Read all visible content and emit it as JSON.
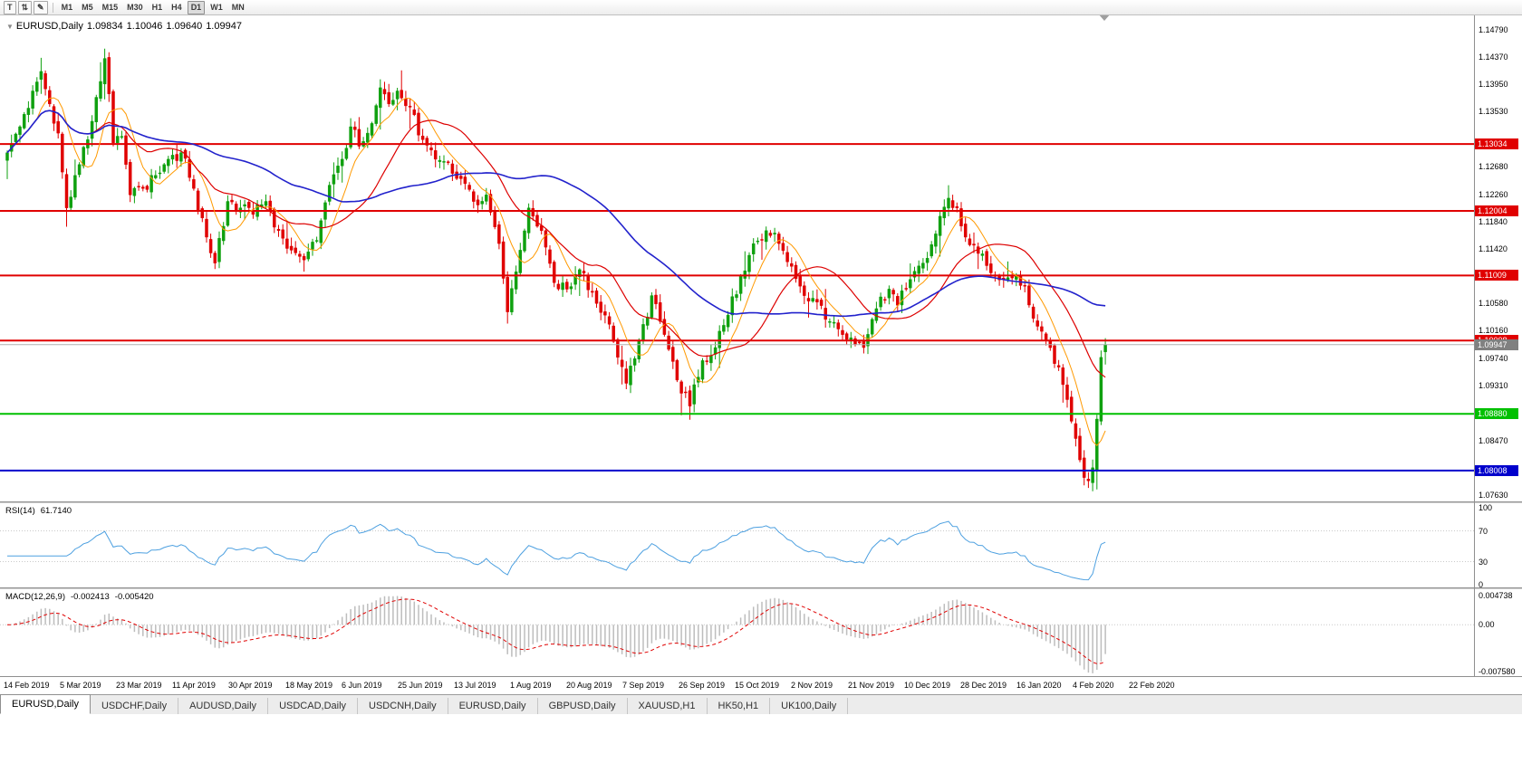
{
  "toolbar": {
    "tools": [
      {
        "name": "templates-tool",
        "glyph": "T"
      },
      {
        "name": "cursor-mode-tool",
        "glyph": "⇅"
      },
      {
        "name": "draw-objects-tool",
        "glyph": "✎"
      }
    ],
    "timeframes": [
      "M1",
      "M5",
      "M15",
      "M30",
      "H1",
      "H4",
      "D1",
      "W1",
      "MN"
    ],
    "selected_timeframe": "D1"
  },
  "header": {
    "one_click_glyph": "▼",
    "symbol": "EURUSD,Daily",
    "open": "1.09834",
    "high": "1.10046",
    "low": "1.09640",
    "close": "1.09947"
  },
  "price_axis": {
    "ticks": [
      "1.14790",
      "1.14370",
      "1.13950",
      "1.13530",
      "1.12680",
      "1.12260",
      "1.11840",
      "1.11420",
      "1.10580",
      "1.10160",
      "1.09740",
      "1.09310",
      "1.08470",
      "1.07630"
    ]
  },
  "rsi_pane": {
    "label": "RSI(14)",
    "value": "61.7140",
    "period": 14,
    "axis": [
      {
        "v": 100,
        "t": "100"
      },
      {
        "v": 70,
        "t": "70"
      },
      {
        "v": 30,
        "t": "30"
      },
      {
        "v": 0,
        "t": "0"
      }
    ],
    "dashed_levels": [
      70,
      30
    ],
    "line_color": "#4da0e0"
  },
  "macd_pane": {
    "label": "MACD(12,26,9)",
    "main_value": "-0.002413",
    "signal_value": "-0.005420",
    "axis": [
      {
        "v": 0.004738,
        "t": "0.004738"
      },
      {
        "v": 0,
        "t": "0.00"
      },
      {
        "v": -0.00758,
        "t": "-0.007580"
      }
    ],
    "range": {
      "max": 0.004738,
      "min": -0.00758
    },
    "hist_color": "#bdbdbd",
    "signal_color": "#e00000"
  },
  "tabs": {
    "active_index": 0,
    "items": [
      "EURUSD,Daily",
      "USDCHF,Daily",
      "AUDUSD,Daily",
      "USDCAD,Daily",
      "USDCNH,Daily",
      "EURUSD,Daily",
      "GBPUSD,Daily",
      "XAUUSD,H1",
      "HK50,H1",
      "UK100,Daily"
    ]
  },
  "chart_data": {
    "type": "candlestick",
    "symbol": "EURUSD",
    "timeframe": "Daily",
    "ohlc_current": {
      "open": 1.09834,
      "high": 1.10046,
      "low": 1.0964,
      "close": 1.09947
    },
    "y_range": [
      1.0763,
      1.1479
    ],
    "bars": 260,
    "seed": 11,
    "noise_amp": 0.0011,
    "gap_amp": 0.0004,
    "wick_amp": 0.0016,
    "date_labels": [
      "14 Feb 2019",
      "5 Mar 2019",
      "23 Mar 2019",
      "11 Apr 2019",
      "30 Apr 2019",
      "18 May 2019",
      "6 Jun 2019",
      "25 Jun 2019",
      "13 Jul 2019",
      "1 Aug 2019",
      "20 Aug 2019",
      "7 Sep 2019",
      "26 Sep 2019",
      "15 Oct 2019",
      "2 Nov 2019",
      "21 Nov 2019",
      "10 Dec 2019",
      "28 Dec 2019",
      "16 Jan 2020",
      "4 Feb 2020",
      "22 Feb 2020"
    ],
    "close_anchors": [
      [
        0,
        1.129
      ],
      [
        3,
        1.133
      ],
      [
        6,
        1.1385
      ],
      [
        8,
        1.1415
      ],
      [
        10,
        1.1365
      ],
      [
        12,
        1.132
      ],
      [
        14,
        1.1205
      ],
      [
        16,
        1.1255
      ],
      [
        19,
        1.131
      ],
      [
        23,
        1.1435
      ],
      [
        25,
        1.1305
      ],
      [
        27,
        1.1315
      ],
      [
        29,
        1.1225
      ],
      [
        32,
        1.1235
      ],
      [
        35,
        1.1255
      ],
      [
        38,
        1.128
      ],
      [
        41,
        1.129
      ],
      [
        44,
        1.1235
      ],
      [
        47,
        1.116
      ],
      [
        49,
        1.112
      ],
      [
        52,
        1.1215
      ],
      [
        55,
        1.1205
      ],
      [
        58,
        1.1195
      ],
      [
        61,
        1.1215
      ],
      [
        64,
        1.117
      ],
      [
        67,
        1.114
      ],
      [
        70,
        1.1125
      ],
      [
        73,
        1.1155
      ],
      [
        76,
        1.124
      ],
      [
        79,
        1.128
      ],
      [
        81,
        1.133
      ],
      [
        83,
        1.13
      ],
      [
        85,
        1.132
      ],
      [
        88,
        1.139
      ],
      [
        90,
        1.1365
      ],
      [
        92,
        1.1385
      ],
      [
        95,
        1.136
      ],
      [
        98,
        1.131
      ],
      [
        101,
        1.128
      ],
      [
        104,
        1.1275
      ],
      [
        107,
        1.125
      ],
      [
        110,
        1.1215
      ],
      [
        113,
        1.1225
      ],
      [
        116,
        1.115
      ],
      [
        118,
        1.1045
      ],
      [
        121,
        1.114
      ],
      [
        123,
        1.1205
      ],
      [
        126,
        1.117
      ],
      [
        129,
        1.109
      ],
      [
        132,
        1.108
      ],
      [
        135,
        1.111
      ],
      [
        138,
        1.1075
      ],
      [
        141,
        1.104
      ],
      [
        144,
        1.0975
      ],
      [
        146,
        1.0935
      ],
      [
        149,
        1.1
      ],
      [
        152,
        1.107
      ],
      [
        155,
        1.101
      ],
      [
        158,
        1.094
      ],
      [
        161,
        1.09
      ],
      [
        164,
        1.097
      ],
      [
        167,
        1.099
      ],
      [
        170,
        1.104
      ],
      [
        173,
        1.11
      ],
      [
        176,
        1.115
      ],
      [
        179,
        1.117
      ],
      [
        182,
        1.115
      ],
      [
        185,
        1.1115
      ],
      [
        188,
        1.107
      ],
      [
        191,
        1.106
      ],
      [
        194,
        1.103
      ],
      [
        197,
        1.101
      ],
      [
        200,
        1.0995
      ],
      [
        202,
        1.099
      ],
      [
        205,
        1.105
      ],
      [
        208,
        1.108
      ],
      [
        210,
        1.1055
      ],
      [
        213,
        1.1095
      ],
      [
        216,
        1.112
      ],
      [
        219,
        1.1165
      ],
      [
        222,
        1.122
      ],
      [
        224,
        1.1205
      ],
      [
        226,
        1.116
      ],
      [
        229,
        1.1135
      ],
      [
        232,
        1.1105
      ],
      [
        235,
        1.1095
      ],
      [
        238,
        1.11
      ],
      [
        240,
        1.1085
      ],
      [
        242,
        1.1035
      ],
      [
        244,
        1.1015
      ],
      [
        246,
        1.099
      ],
      [
        248,
        1.096
      ],
      [
        250,
        1.091
      ],
      [
        252,
        1.085
      ],
      [
        254,
        1.079
      ],
      [
        255,
        1.0785
      ],
      [
        256,
        1.0805
      ],
      [
        257,
        1.088
      ],
      [
        258,
        1.0975
      ],
      [
        259,
        1.09947
      ]
    ],
    "overrides": {
      "8": {
        "high": 1.1436
      },
      "14": {
        "low": 1.1176
      },
      "23": {
        "high": 1.145
      },
      "49": {
        "low": 1.1111
      },
      "70": {
        "low": 1.1107
      },
      "88": {
        "high": 1.1403
      },
      "118": {
        "low": 1.1027
      },
      "146": {
        "low": 1.0926
      },
      "161": {
        "low": 1.0879
      },
      "202": {
        "low": 1.0981
      },
      "222": {
        "high": 1.124
      },
      "254": {
        "low": 1.0778
      },
      "259": {
        "open": 1.09834,
        "high": 1.10046,
        "low": 1.0964,
        "close": 1.09947
      }
    },
    "moving_averages": [
      {
        "period": 8,
        "color": "#ff9900",
        "width": 1
      },
      {
        "period": 21,
        "color": "#dd0000",
        "width": 1.2
      },
      {
        "period": 55,
        "color": "#2222cc",
        "width": 1.6
      }
    ],
    "key_levels": [
      {
        "price": 1.13034,
        "label": "1.13034",
        "color": "#e00000"
      },
      {
        "price": 1.12004,
        "label": "1.12004",
        "color": "#e00000"
      },
      {
        "price": 1.11009,
        "label": "1.11009",
        "color": "#e00000"
      },
      {
        "price": 1.10008,
        "label": "1.10008",
        "color": "#e00000"
      },
      {
        "price": 1.0888,
        "label": "1.08880",
        "color": "#00c000"
      },
      {
        "price": 1.08008,
        "label": "1.08008",
        "color": "#0000cc"
      }
    ],
    "bid": {
      "price": 1.09947,
      "label": "1.09947",
      "line_color": "#b0b0b0",
      "label_bg": "#808080"
    },
    "candle_colors": {
      "up": "#0fa00f",
      "down": "#e00000"
    },
    "indicators": [
      {
        "name": "RSI",
        "period": 14,
        "current": 61.714
      },
      {
        "name": "MACD",
        "fast": 12,
        "slow": 26,
        "signal": 9,
        "current_main": -0.002413,
        "current_signal": -0.00542
      }
    ]
  }
}
